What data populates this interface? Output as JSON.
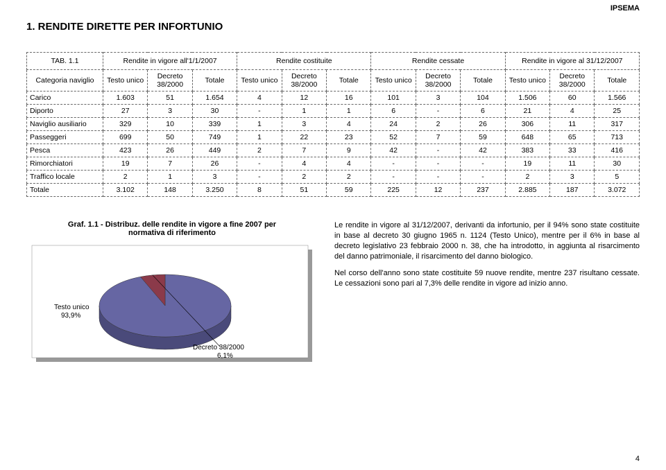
{
  "brand": "IPSEMA",
  "title": "1. RENDITE DIRETTE PER INFORTUNIO",
  "tab_label": "TAB. 1.1",
  "column_groups": [
    "Rendite in vigore all'1/1/2007",
    "Rendite costituite",
    "Rendite cessate",
    "Rendite in vigore al 31/12/2007"
  ],
  "row_header_label": "Categoria naviglio",
  "sub_cols": [
    "Testo unico",
    "Decreto 38/2000",
    "Totale"
  ],
  "rows": [
    {
      "label": "Carico",
      "v": [
        "1.603",
        "51",
        "1.654",
        "4",
        "12",
        "16",
        "101",
        "3",
        "104",
        "1.506",
        "60",
        "1.566"
      ]
    },
    {
      "label": "Diporto",
      "v": [
        "27",
        "3",
        "30",
        "-",
        "1",
        "1",
        "6",
        "-",
        "6",
        "21",
        "4",
        "25"
      ]
    },
    {
      "label": "Naviglio ausiliario",
      "v": [
        "329",
        "10",
        "339",
        "1",
        "3",
        "4",
        "24",
        "2",
        "26",
        "306",
        "11",
        "317"
      ]
    },
    {
      "label": "Passeggeri",
      "v": [
        "699",
        "50",
        "749",
        "1",
        "22",
        "23",
        "52",
        "7",
        "59",
        "648",
        "65",
        "713"
      ]
    },
    {
      "label": "Pesca",
      "v": [
        "423",
        "26",
        "449",
        "2",
        "7",
        "9",
        "42",
        "-",
        "42",
        "383",
        "33",
        "416"
      ]
    },
    {
      "label": "Rimorchiatori",
      "v": [
        "19",
        "7",
        "26",
        "-",
        "4",
        "4",
        "-",
        "-",
        "-",
        "19",
        "11",
        "30"
      ]
    },
    {
      "label": "Traffico locale",
      "v": [
        "2",
        "1",
        "3",
        "-",
        "2",
        "2",
        "-",
        "-",
        "-",
        "2",
        "3",
        "5"
      ]
    }
  ],
  "total_row": {
    "label": "Totale",
    "v": [
      "3.102",
      "148",
      "3.250",
      "8",
      "51",
      "59",
      "225",
      "12",
      "237",
      "2.885",
      "187",
      "3.072"
    ]
  },
  "chart": {
    "title_prefix": "Graf. 1.1 - Distribuz. ",
    "title_rest1": "delle rendite in vigore a fine 2007 per",
    "title_rest2": "normativa di riferimento",
    "slices": [
      {
        "label": "Testo unico",
        "pct_label": "93,9%",
        "value": 93.9,
        "color": "#6666a3",
        "side_color": "#4a4a7a"
      },
      {
        "label": "Decreto 38/2000",
        "pct_label": "6,1%",
        "value": 6.1,
        "color": "#8b3a4a",
        "side_color": "#6a2c38"
      }
    ],
    "background": "#ffffff",
    "shadow_color": "#999999"
  },
  "paragraphs": [
    "Le rendite in vigore al 31/12/2007, derivanti da infortunio, per il 94% sono state costituite in base al decreto 30 giugno 1965 n. 1124 (Testo Unico), mentre per il 6% in base al decreto legislativo 23 febbraio 2000 n. 38, che ha introdotto, in aggiunta al risarcimento del danno patrimoniale, il risarcimento del danno biologico.",
    "Nel corso dell'anno sono state costituite 59 nuove rendite, mentre 237 risultano cessate. Le cessazioni sono pari al 7,3% delle rendite in vigore ad inizio anno."
  ],
  "page_number": "4"
}
